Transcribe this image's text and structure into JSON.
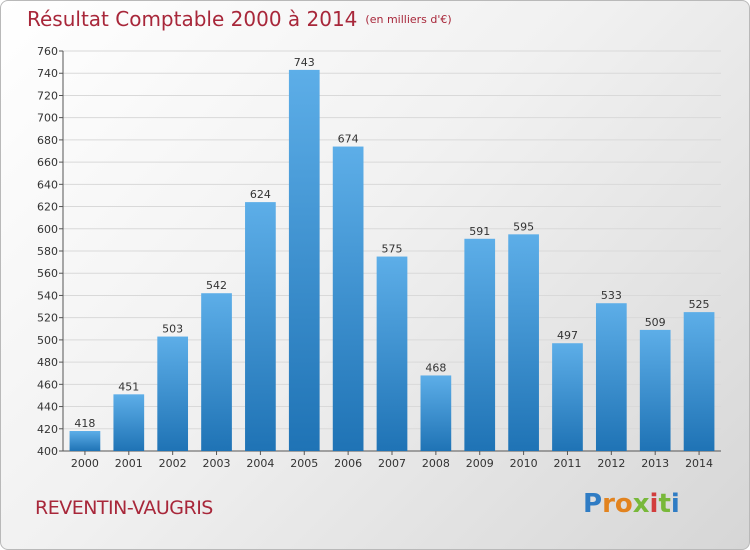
{
  "header": {
    "title": "Résultat Comptable 2000 à 2014",
    "subtitle": "(en milliers d'€)"
  },
  "footer": {
    "place": "REVENTIN-VAUGRIS",
    "logo_text": "Proxiti"
  },
  "colors": {
    "title": "#a8273a",
    "bar_top": "#5daee8",
    "bar_bottom": "#1f73b5",
    "gridline": "#d9d9d9"
  },
  "chart_data": {
    "type": "bar",
    "title": "Résultat Comptable 2000 à 2014",
    "subtitle": "(en milliers d'€)",
    "categories": [
      "2000",
      "2001",
      "2002",
      "2003",
      "2004",
      "2005",
      "2006",
      "2007",
      "2008",
      "2009",
      "2010",
      "2011",
      "2012",
      "2013",
      "2014"
    ],
    "values": [
      418,
      451,
      503,
      542,
      624,
      743,
      674,
      575,
      468,
      591,
      595,
      497,
      533,
      509,
      525
    ],
    "ylim": [
      400,
      760
    ],
    "ytick_step": 20,
    "grid": true,
    "legend": "none"
  }
}
